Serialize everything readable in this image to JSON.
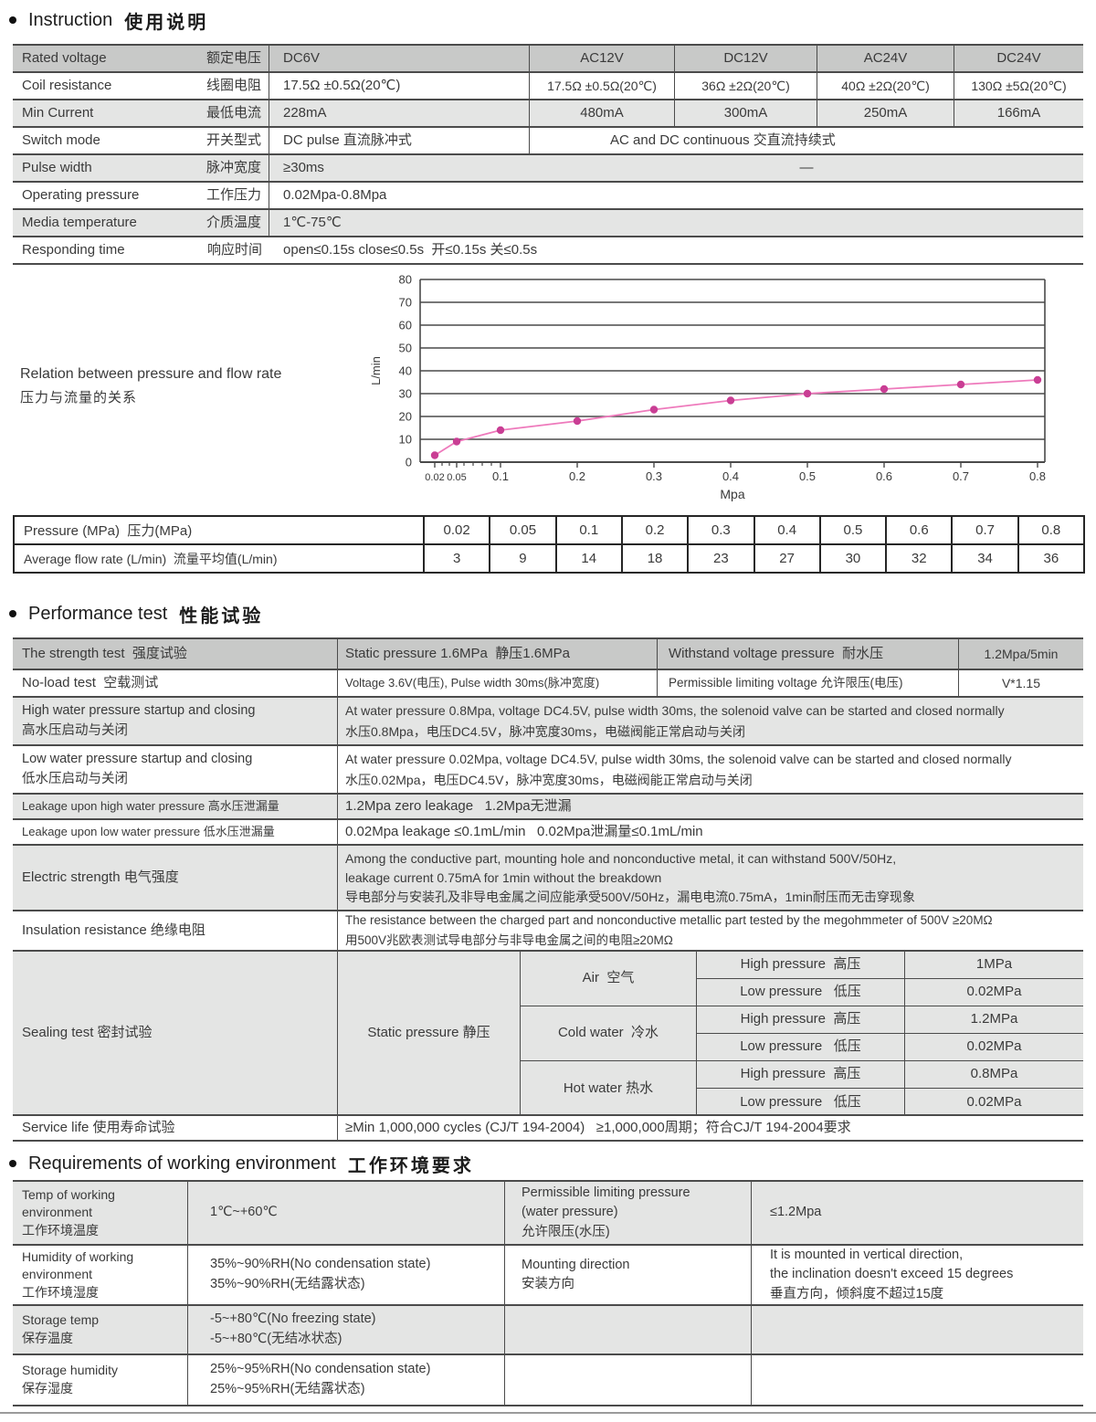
{
  "page": {
    "title1_en": "Instruction",
    "title1_zh": "使用说明",
    "title2_en": "Performance test",
    "title2_zh": "性能试验",
    "title3_en": "Requirements of working environment",
    "title3_zh": "工作环境要求"
  },
  "spec": {
    "rows": [
      {
        "label_en": "Rated voltage",
        "label_zh": "额定电压",
        "c1": "DC6V",
        "c2": "AC12V",
        "c3": "DC12V",
        "c4": "AC24V",
        "c5": "DC24V"
      },
      {
        "label_en": "Coil resistance",
        "label_zh": "线圈电阻",
        "c1": "17.5Ω ±0.5Ω(20℃)",
        "c2": "17.5Ω ±0.5Ω(20℃)",
        "c3": "36Ω ±2Ω(20℃)",
        "c4": "40Ω ±2Ω(20℃)",
        "c5": "130Ω ±5Ω(20℃)"
      },
      {
        "label_en": "Min Current",
        "label_zh": "最低电流",
        "c1": "228mA",
        "c2": "480mA",
        "c3": "300mA",
        "c4": "250mA",
        "c5": "166mA"
      },
      {
        "label_en": "Switch mode",
        "label_zh": "开关型式",
        "c1": "DC pulse 直流脉冲式",
        "rest": "AC and DC continuous 交直流持续式"
      },
      {
        "label_en": "Pulse width",
        "label_zh": "脉冲宽度",
        "c1": "≥30ms",
        "rest": "—"
      },
      {
        "label_en": "Operating pressure",
        "label_zh": "工作压力",
        "value": "0.02Mpa-0.8Mpa"
      },
      {
        "label_en": "Media temperature",
        "label_zh": "介质温度",
        "value": "1℃-75℃"
      },
      {
        "label_en": "Responding time",
        "label_zh": "响应时间",
        "value": "open≤0.15s close≤0.5s  开≤0.15s 关≤0.5s"
      }
    ]
  },
  "chart_caption": {
    "en": "Relation between pressure and flow rate",
    "zh": "压力与流量的关系"
  },
  "chart_data": {
    "type": "line",
    "title": "Relation between pressure and flow rate 压力与流量的关系",
    "x": [
      0.02,
      0.05,
      0.1,
      0.2,
      0.3,
      0.4,
      0.5,
      0.6,
      0.7,
      0.8
    ],
    "values": [
      3,
      9,
      14,
      18,
      23,
      27,
      30,
      32,
      34,
      36
    ],
    "xlabel": "Mpa",
    "ylabel": "L/min",
    "ylim": [
      0,
      80
    ],
    "ytick_step": 10,
    "grid": true,
    "line_color": "#ee7abc",
    "point_color": "#c93e94",
    "axis_color": "#4a4a4a"
  },
  "flow_table": {
    "pressure_label": "Pressure (MPa)  压力(MPa)",
    "flow_label": "Average flow rate (L/min)  流量平均值(L/min)",
    "pressures": [
      "0.02",
      "0.05",
      "0.1",
      "0.2",
      "0.3",
      "0.4",
      "0.5",
      "0.6",
      "0.7",
      "0.8"
    ],
    "flows": [
      "3",
      "9",
      "14",
      "18",
      "23",
      "27",
      "30",
      "32",
      "34",
      "36"
    ]
  },
  "perf": {
    "rows": [
      {
        "c1": "The strength test  强度试验",
        "c2": "Static pressure 1.6MPa  静压1.6MPa",
        "c3": "Withstand voltage pressure  耐水压",
        "c4": "1.2Mpa/5min"
      },
      {
        "c1": "No-load test  空载测试",
        "c2": "Voltage 3.6V(电压), Pulse width 30ms(脉冲宽度)",
        "c3": "Permissible limiting voltage 允许限压(电压)",
        "c4": "V*1.15"
      },
      {
        "c1": "High water pressure startup and closing\n高水压启动与关闭",
        "val": "At water pressure 0.8Mpa, voltage DC4.5V, pulse width 30ms, the solenoid valve can be started and closed normally\n水压0.8Mpa，电压DC4.5V，脉冲宽度30ms，电磁阀能正常启动与关闭"
      },
      {
        "c1": "Low water pressure startup and closing\n低水压启动与关闭",
        "val": "At water pressure 0.02Mpa, voltage DC4.5V, pulse width 30ms, the solenoid valve can be started and closed normally\n水压0.02Mpa，电压DC4.5V，脉冲宽度30ms，电磁阀能正常启动与关闭"
      },
      {
        "c1": "Leakage upon high water pressure 高水压泄漏量",
        "val": "1.2Mpa zero leakage   1.2Mpa无泄漏"
      },
      {
        "c1": "Leakage upon low water pressure 低水压泄漏量",
        "val": "0.02Mpa leakage ≤0.1mL/min   0.02Mpa泄漏量≤0.1mL/min"
      },
      {
        "c1": "Electric strength 电气强度",
        "val": "Among the conductive part, mounting hole and nonconductive metal, it can withstand 500V/50Hz,\nleakage current 0.75mA for 1min without the breakdown\n导电部分与安装孔及非导电金属之间应能承受500V/50Hz，漏电电流0.75mA，1min耐压而无击穿现象"
      },
      {
        "c1": "Insulation resistance 绝缘电阻",
        "val": "The resistance between the charged part and nonconductive metallic part tested by the megohmmeter of 500V ≥20MΩ\n用500V兆欧表测试导电部分与非导电金属之间的电阻≥20MΩ"
      }
    ]
  },
  "sealing": {
    "label": "Sealing test 密封试验",
    "method": "Static pressure 静压",
    "media": [
      {
        "name": "Air  空气",
        "rows": [
          {
            "label": "High pressure  高压",
            "value": "1MPa"
          },
          {
            "label": "Low pressure   低压",
            "value": "0.02MPa"
          }
        ]
      },
      {
        "name": "Cold water  冷水",
        "rows": [
          {
            "label": "High pressure  高压",
            "value": "1.2MPa"
          },
          {
            "label": "Low pressure   低压",
            "value": "0.02MPa"
          }
        ]
      },
      {
        "name": "Hot water 热水",
        "rows": [
          {
            "label": "High pressure  高压",
            "value": "0.8MPa"
          },
          {
            "label": "Low pressure   低压",
            "value": "0.02MPa"
          }
        ]
      }
    ]
  },
  "service_life": {
    "label": "Service life 使用寿命试验",
    "value": "≥Min 1,000,000 cycles (CJ/T 194-2004)   ≥1,000,000周期；符合CJ/T 194-2004要求"
  },
  "req": {
    "rows": [
      {
        "c1": "Temp of working\nenvironment\n工作环境温度",
        "c2": "1℃~+60℃",
        "c3": "Permissible limiting pressure\n(water pressure)\n允许限压(水压)",
        "c4": "≤1.2Mpa"
      },
      {
        "c1": "Humidity of working\nenvironment\n工作环境湿度",
        "c2": "35%~90%RH(No condensation state)\n35%~90%RH(无结露状态)",
        "c3": "Mounting direction\n安装方向",
        "c4": "It is mounted in vertical direction,\nthe inclination doesn't exceed 15 degrees\n垂直方向，倾斜度不超过15度"
      },
      {
        "c1": "Storage temp\n保存温度",
        "c2": "-5~+80℃(No freezing state)\n-5~+80℃(无结冰状态)",
        "c3": "",
        "c4": ""
      },
      {
        "c1": "Storage humidity\n保存湿度",
        "c2": "25%~95%RH(No condensation state)\n25%~95%RH(无结露状态)",
        "c3": "",
        "c4": ""
      }
    ]
  }
}
